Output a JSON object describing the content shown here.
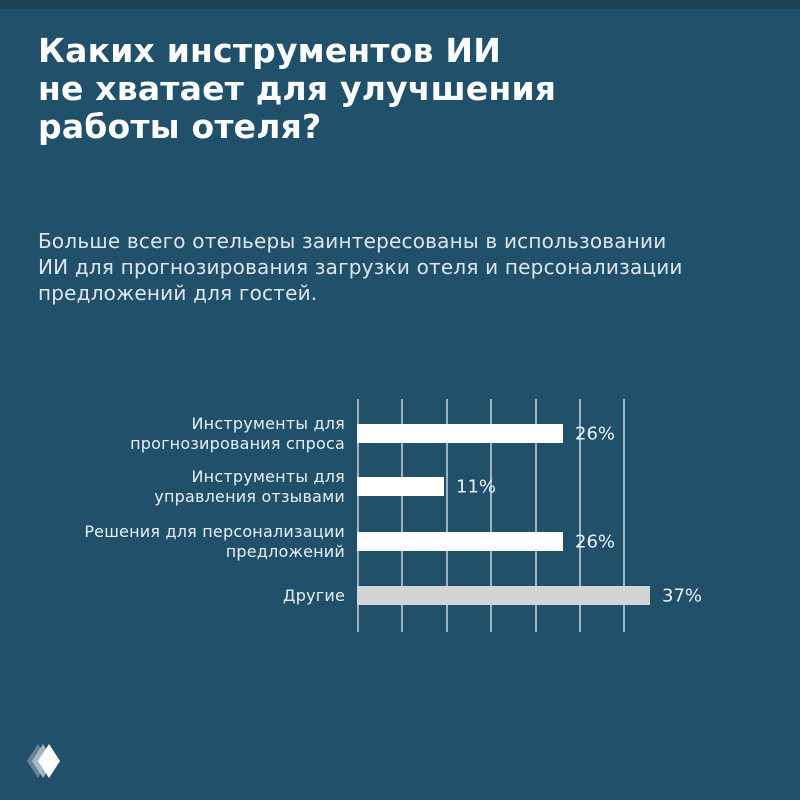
{
  "page": {
    "background": "#21506a",
    "accent_bar_color": "#ffffff",
    "muted_bar_color": "#d3d4d5"
  },
  "header": {
    "title": "Каких инструментов ИИ\nне хватает для улучшения\nработы отеля?",
    "subtitle": "Больше всего отельеры заинтересованы в использовании\nИИ для прогнозирования загрузки отеля и персонализации\nпредложений для гостей."
  },
  "chart_data": {
    "type": "bar",
    "orientation": "horizontal",
    "title": "",
    "xlabel": "",
    "ylabel": "",
    "unit": "%",
    "xlim": [
      0,
      40
    ],
    "grid": true,
    "gridline_count": 7,
    "gridline_color": "#9eb3bd",
    "value_label_color": "#eef2f4",
    "category_label_color": "#e9eef1",
    "categories": [
      "Инструменты для прогнозирования спроса",
      "Инструменты для управления отзывами",
      "Решения для персонализации предложений",
      "Другие"
    ],
    "values": [
      26,
      11,
      26,
      37
    ],
    "rows": [
      {
        "label": "Инструменты для\nпрогнозирования спроса",
        "value": 26,
        "display": "26%",
        "bar_color": "#ffffff"
      },
      {
        "label": "Инструменты для\nуправления отзывами",
        "value": 11,
        "display": "11%",
        "bar_color": "#ffffff"
      },
      {
        "label": "Решения для персонализации\nпредложений",
        "value": 26,
        "display": "26%",
        "bar_color": "#ffffff"
      },
      {
        "label": "Другие",
        "value": 37,
        "display": "37%",
        "bar_color": "#d3d4d5"
      }
    ]
  },
  "footer": {
    "logo": "layered-diamond-logo",
    "logo_front_color": "#ffffff",
    "logo_mid_color": "#aebfc8",
    "logo_back_color": "#7f96a3"
  }
}
